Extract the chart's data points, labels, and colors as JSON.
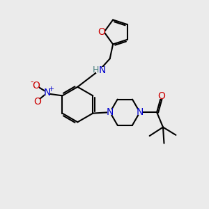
{
  "bg_color": "#ebebeb",
  "bond_color": "#000000",
  "N_color": "#0000cc",
  "O_color": "#cc0000",
  "H_color": "#4a8080",
  "lw": 1.5,
  "figsize": [
    3.0,
    3.0
  ],
  "dpi": 100,
  "xlim": [
    0,
    10
  ],
  "ylim": [
    0,
    10
  ]
}
